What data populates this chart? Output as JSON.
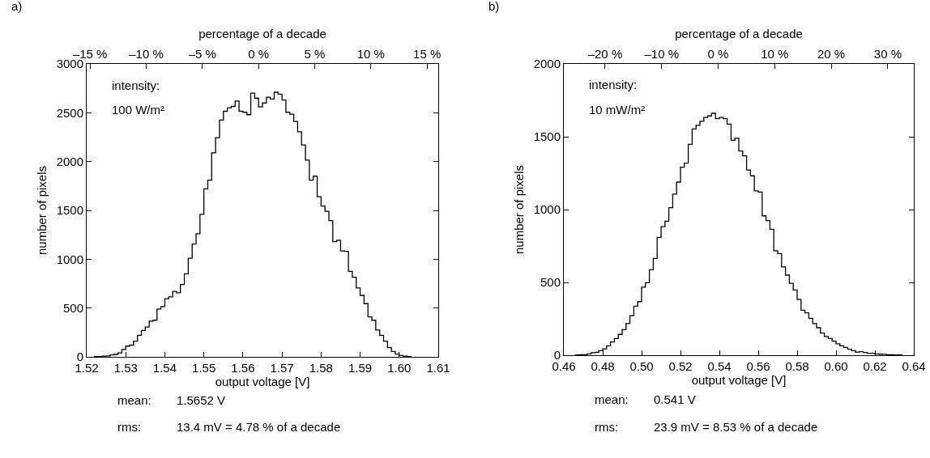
{
  "chart_data": [
    {
      "type": "histogram",
      "xlabel": "output voltage [V]",
      "ylabel": "number of pixels",
      "x2label": "percentage of a decade",
      "color": "#000000",
      "annotations": [
        "a)",
        "intensity:",
        "100 W/m²",
        "mean:",
        "1.5652 V",
        "rms:",
        "13.4 mV = 4.78 % of a decade"
      ],
      "bins": [
        1.522,
        1.523,
        1.524,
        1.525,
        1.526,
        1.527,
        1.528,
        1.529,
        1.53,
        1.531,
        1.532,
        1.533,
        1.534,
        1.535,
        1.536,
        1.537,
        1.538,
        1.539,
        1.54,
        1.541,
        1.542,
        1.543,
        1.544,
        1.545,
        1.546,
        1.547,
        1.548,
        1.549,
        1.55,
        1.551,
        1.552,
        1.553,
        1.554,
        1.555,
        1.556,
        1.557,
        1.558,
        1.559,
        1.56,
        1.561,
        1.562,
        1.563,
        1.564,
        1.565,
        1.566,
        1.567,
        1.568,
        1.569,
        1.57,
        1.571,
        1.572,
        1.573,
        1.574,
        1.575,
        1.576,
        1.577,
        1.578,
        1.579,
        1.58,
        1.581,
        1.582,
        1.583,
        1.584,
        1.585,
        1.586,
        1.587,
        1.588,
        1.589,
        1.59,
        1.591,
        1.592,
        1.593,
        1.594,
        1.595,
        1.596,
        1.597,
        1.598,
        1.599,
        1.6,
        1.601,
        1.602,
        1.603
      ],
      "values": [
        2,
        3,
        8,
        10,
        20,
        25,
        40,
        75,
        110,
        120,
        160,
        220,
        270,
        305,
        365,
        375,
        490,
        515,
        595,
        615,
        670,
        655,
        740,
        850,
        1010,
        1155,
        1260,
        1460,
        1720,
        1810,
        2090,
        2245,
        2425,
        2515,
        2550,
        2565,
        2620,
        2515,
        2505,
        2480,
        2700,
        2650,
        2560,
        2600,
        2660,
        2640,
        2710,
        2690,
        2630,
        2505,
        2485,
        2410,
        2305,
        2170,
        2015,
        1810,
        1850,
        1640,
        1545,
        1490,
        1395,
        1180,
        1195,
        1085,
        1080,
        875,
        815,
        705,
        630,
        545,
        410,
        375,
        275,
        220,
        160,
        95,
        55,
        28,
        14,
        8,
        3
      ],
      "xlim": [
        1.52,
        1.61
      ],
      "xticks": [
        1.52,
        1.53,
        1.54,
        1.55,
        1.56,
        1.57,
        1.58,
        1.59,
        {
          "value": 1.6,
          "label": "1.60"
        },
        1.61
      ],
      "ylim": [
        0,
        3000
      ],
      "yticks": [
        0,
        500,
        1000,
        1500,
        2000,
        2500,
        3000
      ],
      "x2lim": [
        -15.3,
        16.0
      ],
      "x2ticks": [
        {
          "value": -15,
          "label": "–15 %"
        },
        {
          "value": -10,
          "label": "–10 %"
        },
        {
          "value": -5,
          "label": "–5 %"
        },
        {
          "value": 0,
          "label": "0 %"
        },
        {
          "value": 5,
          "label": "5 %"
        },
        {
          "value": 10,
          "label": "10 %"
        },
        {
          "value": 15,
          "label": "15 %"
        }
      ],
      "grid": false
    },
    {
      "type": "histogram",
      "xlabel": "output voltage [V]",
      "ylabel": "number of pixels",
      "x2label": "percentage of a decade",
      "color": "#000000",
      "annotations": [
        "b)",
        "intensity:",
        "10 mW/m²",
        "mean:",
        "0.541 V",
        "rms:",
        "23.9 mV = 8.53 % of a decade"
      ],
      "bins": [
        0.466,
        0.468,
        0.47,
        0.472,
        0.474,
        0.476,
        0.478,
        0.48,
        0.482,
        0.484,
        0.486,
        0.488,
        0.49,
        0.492,
        0.494,
        0.496,
        0.498,
        0.5,
        0.502,
        0.504,
        0.506,
        0.508,
        0.51,
        0.512,
        0.514,
        0.516,
        0.518,
        0.52,
        0.522,
        0.524,
        0.526,
        0.528,
        0.53,
        0.532,
        0.534,
        0.536,
        0.538,
        0.54,
        0.542,
        0.544,
        0.546,
        0.548,
        0.55,
        0.552,
        0.554,
        0.556,
        0.558,
        0.56,
        0.562,
        0.564,
        0.566,
        0.568,
        0.57,
        0.572,
        0.574,
        0.576,
        0.578,
        0.58,
        0.582,
        0.584,
        0.586,
        0.588,
        0.59,
        0.592,
        0.594,
        0.596,
        0.598,
        0.6,
        0.602,
        0.604,
        0.606,
        0.608,
        0.61,
        0.612,
        0.614,
        0.616,
        0.618,
        0.62,
        0.622,
        0.624,
        0.626,
        0.628,
        0.63,
        0.632,
        0.634
      ],
      "values": [
        2,
        3,
        4,
        9,
        17,
        20,
        31,
        44,
        65,
        91,
        115,
        143,
        176,
        217,
        272,
        337,
        368,
        467,
        498,
        587,
        665,
        809,
        883,
        920,
        1013,
        1106,
        1189,
        1291,
        1319,
        1448,
        1554,
        1578,
        1606,
        1633,
        1643,
        1661,
        1624,
        1633,
        1624,
        1587,
        1476,
        1490,
        1402,
        1369,
        1272,
        1232,
        1128,
        1120,
        957,
        924,
        865,
        717,
        698,
        606,
        550,
        494,
        448,
        383,
        309,
        291,
        254,
        217,
        189,
        152,
        128,
        115,
        96,
        78,
        65,
        54,
        41,
        31,
        22,
        24,
        19,
        13,
        13,
        9,
        7,
        6,
        4,
        4,
        2,
        2
      ],
      "xlim": [
        0.46,
        0.64
      ],
      "xticks": [
        0.46,
        0.48,
        {
          "value": 0.5,
          "label": "0.50"
        },
        0.52,
        0.54,
        0.56,
        0.58,
        {
          "value": 0.6,
          "label": "0.60"
        },
        0.62,
        0.64
      ],
      "ylim": [
        0,
        2000
      ],
      "yticks": [
        0,
        500,
        1000,
        1500,
        2000
      ],
      "x2lim": [
        -27.3,
        34.6
      ],
      "x2ticks": [
        {
          "value": -20,
          "label": "–20 %"
        },
        {
          "value": -10,
          "label": "–10 %"
        },
        {
          "value": 0,
          "label": "0 %"
        },
        {
          "value": 10,
          "label": "10 %"
        },
        {
          "value": 20,
          "label": "20 %"
        },
        {
          "value": 30,
          "label": "30 %"
        }
      ],
      "grid": false
    }
  ]
}
